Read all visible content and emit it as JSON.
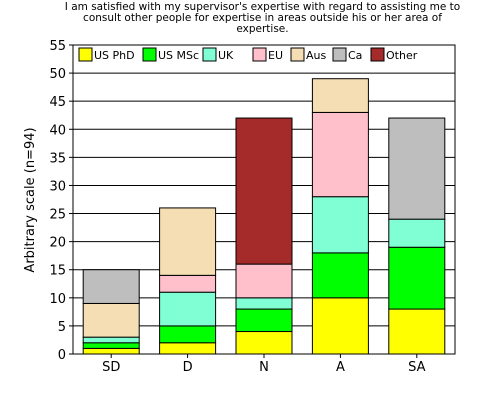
{
  "chart_data": {
    "type": "bar",
    "stacked": true,
    "title_lines": [
      "I am satisfied with my supervisor's expertise with regard to assisting me to",
      "consult other people for expertise in areas outside his or her area of",
      "expertise."
    ],
    "xlabel": "",
    "ylabel": "Arbitrary scale (n=94)",
    "ylim": [
      0,
      55
    ],
    "yticks": [
      "0",
      "5",
      "10",
      "15",
      "20",
      "25",
      "30",
      "35",
      "40",
      "45",
      "50",
      "55"
    ],
    "grid": "horizontal",
    "legend_position": "top",
    "categories": [
      "SD",
      "D",
      "N",
      "A",
      "SA"
    ],
    "series": [
      {
        "name": "US PhD",
        "color": "#ffff00",
        "values": [
          1,
          2,
          4,
          10,
          8
        ]
      },
      {
        "name": "US MSc",
        "color": "#00ff00",
        "values": [
          1,
          3,
          4,
          8,
          11
        ]
      },
      {
        "name": "UK",
        "color": "#80ffd4",
        "values": [
          1,
          6,
          2,
          10,
          5
        ]
      },
      {
        "name": "EU",
        "color": "#ffc0cb",
        "values": [
          0,
          3,
          6,
          15,
          0
        ]
      },
      {
        "name": "Aus",
        "color": "#f5deb3",
        "values": [
          6,
          12,
          0,
          6,
          0
        ]
      },
      {
        "name": "Ca",
        "color": "#bebebe",
        "values": [
          6,
          0,
          0,
          0,
          18
        ]
      },
      {
        "name": "Other",
        "color": "#a52a2a",
        "values": [
          0,
          0,
          26,
          0,
          0
        ]
      }
    ]
  }
}
